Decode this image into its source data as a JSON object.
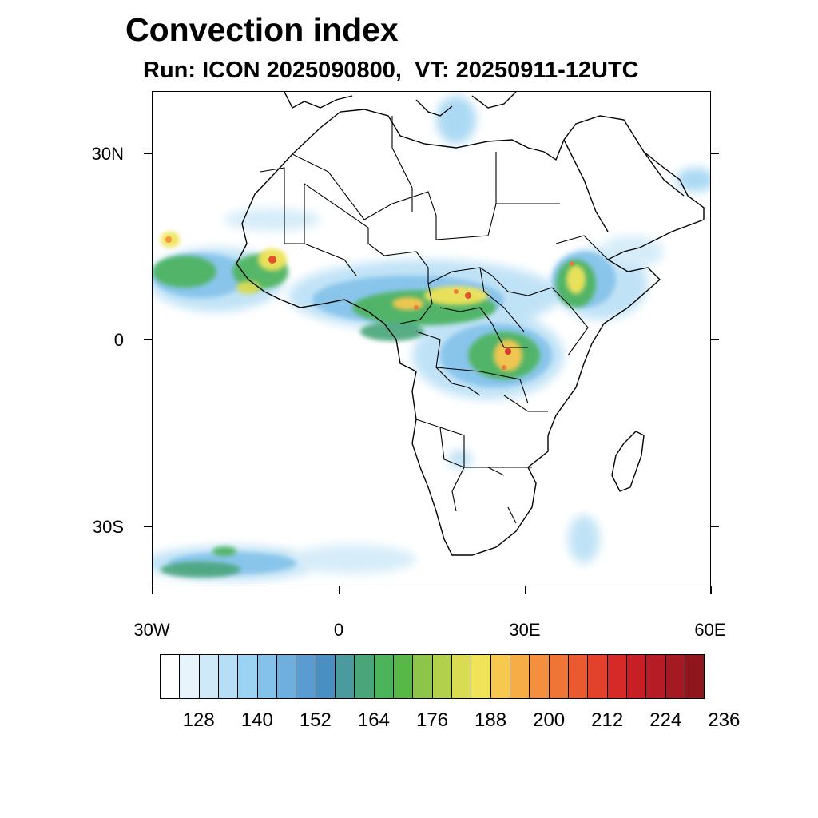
{
  "title": "Convection index",
  "subtitle": "Run: ICON 2025090800,  VT: 20250911-12UTC",
  "map": {
    "region": "Africa",
    "lat_labels": [
      "30N",
      "0",
      "30S"
    ],
    "lon_labels": [
      "30W",
      "0",
      "30E",
      "60E"
    ],
    "lon_range": [
      -30,
      60
    ],
    "lat_range": [
      -40,
      40
    ]
  },
  "colorbar": {
    "colors": [
      "#ffffff",
      "#e8f4fc",
      "#cfe9f8",
      "#b6def5",
      "#9dd3f2",
      "#84c2ea",
      "#6fafdf",
      "#5a9bd2",
      "#4a8fc2",
      "#4b9a9e",
      "#4aa57a",
      "#4bb35a",
      "#58b847",
      "#8dc54a",
      "#b3d04d",
      "#d9dc52",
      "#f0e35a",
      "#f7c84f",
      "#f7ad45",
      "#f4903d",
      "#ef7536",
      "#ea5a30",
      "#e2412b",
      "#d62a28",
      "#c81f27",
      "#b51c25",
      "#a31a22",
      "#8f161d"
    ],
    "labels": [
      "128",
      "140",
      "152",
      "164",
      "176",
      "188",
      "200",
      "212",
      "224",
      "236"
    ]
  }
}
